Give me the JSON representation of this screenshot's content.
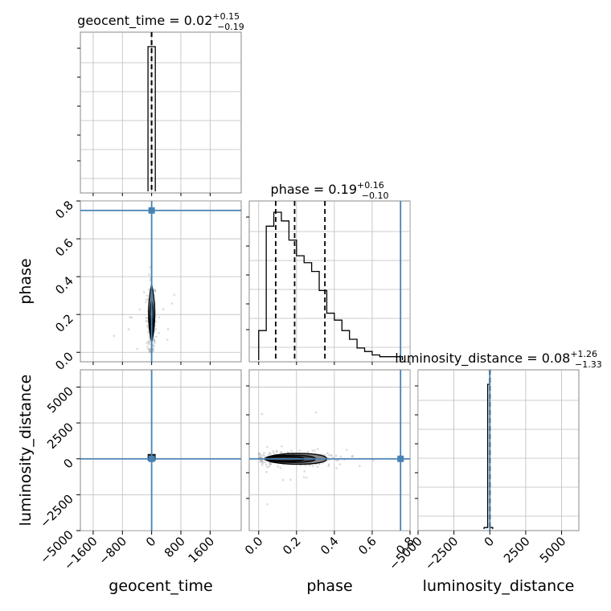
{
  "chart_data": {
    "type": "corner",
    "parameters": [
      "geocent_time",
      "phase",
      "luminosity_distance"
    ],
    "titles": [
      {
        "name": "geocent_time",
        "median": "0.02",
        "plus": "+0.15",
        "minus": "−0.19"
      },
      {
        "name": "phase",
        "median": "0.19",
        "plus": "+0.16",
        "minus": "−0.10"
      },
      {
        "name": "luminosity_distance",
        "median": "0.08",
        "plus": "+1.26",
        "minus": "−1.33"
      }
    ],
    "axis_labels": {
      "x": [
        "geocent_time",
        "phase",
        "luminosity_distance"
      ],
      "y": [
        "",
        "phase",
        "luminosity_distance"
      ]
    },
    "ranges": {
      "geocent_time": [
        -1950,
        2450
      ],
      "phase": [
        -0.05,
        0.8
      ],
      "luminosity_distance": [
        -5000,
        6200
      ]
    },
    "ticks": {
      "geocent_time": [
        -1600,
        -800,
        0,
        800,
        1600
      ],
      "geocent_time_labels": [
        "−1600",
        "−800",
        "0",
        "800",
        "1600"
      ],
      "phase": [
        0.0,
        0.2,
        0.4,
        0.6,
        0.8
      ],
      "phase_labels": [
        "0.0",
        "0.2",
        "0.4",
        "0.6",
        "0.8"
      ],
      "luminosity_distance": [
        -5000,
        -2500,
        0,
        2500,
        5000
      ],
      "luminosity_distance_labels": [
        "−5000",
        "−2500",
        "0",
        "2500",
        "5000"
      ]
    },
    "truths": {
      "geocent_time": 0,
      "phase": 0.75,
      "luminosity_distance": 0
    },
    "quantiles": {
      "geocent_time": [
        -0.17,
        0.02,
        0.17
      ],
      "phase": [
        0.09,
        0.19,
        0.35
      ],
      "luminosity_distance": [
        -1.25,
        0.08,
        1.34
      ]
    },
    "histograms": {
      "geocent_time": {
        "edges": [
          -100,
          100
        ],
        "counts": [
          1.0
        ]
      },
      "phase": {
        "edges": [
          0.0,
          0.04,
          0.08,
          0.12,
          0.16,
          0.2,
          0.24,
          0.28,
          0.32,
          0.36,
          0.4,
          0.44,
          0.48,
          0.52,
          0.56,
          0.6,
          0.64,
          0.68,
          0.72,
          0.76
        ],
        "counts": [
          0.17,
          0.77,
          0.85,
          0.8,
          0.69,
          0.6,
          0.56,
          0.51,
          0.4,
          0.27,
          0.23,
          0.17,
          0.12,
          0.07,
          0.05,
          0.03,
          0.02,
          0.02,
          0.02
        ]
      },
      "luminosity_distance": {
        "edges": [
          -400,
          -150,
          0,
          200
        ],
        "counts": [
          0.01,
          1.0,
          0.01
        ]
      }
    },
    "grid": true
  }
}
